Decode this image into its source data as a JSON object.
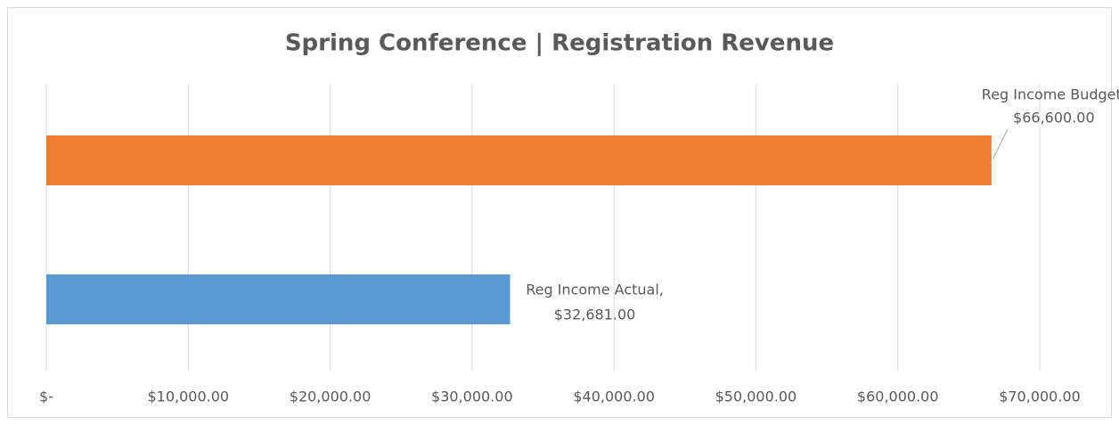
{
  "chart_data": {
    "type": "bar",
    "orientation": "horizontal",
    "title": "Spring Conference | Registration Revenue",
    "categories": [
      null
    ],
    "series": [
      {
        "name": "Reg Income Budget,",
        "color": "#ed7d31",
        "values": [
          66600
        ],
        "value_labels": [
          "$66,600.00"
        ]
      },
      {
        "name": "Reg Income Actual,",
        "color": "#5b9bd5",
        "values": [
          32681
        ],
        "value_labels": [
          "$32,681.00"
        ]
      }
    ],
    "xlim": [
      0,
      70000
    ],
    "xticks": [
      {
        "value": 0,
        "label": "$-"
      },
      {
        "value": 10000,
        "label": "$10,000.00"
      },
      {
        "value": 20000,
        "label": "$20,000.00"
      },
      {
        "value": 30000,
        "label": "$30,000.00"
      },
      {
        "value": 40000,
        "label": "$40,000.00"
      },
      {
        "value": 50000,
        "label": "$50,000.00"
      },
      {
        "value": 60000,
        "label": "$60,000.00"
      },
      {
        "value": 70000,
        "label": "$70,000.00"
      }
    ],
    "grid": true
  }
}
